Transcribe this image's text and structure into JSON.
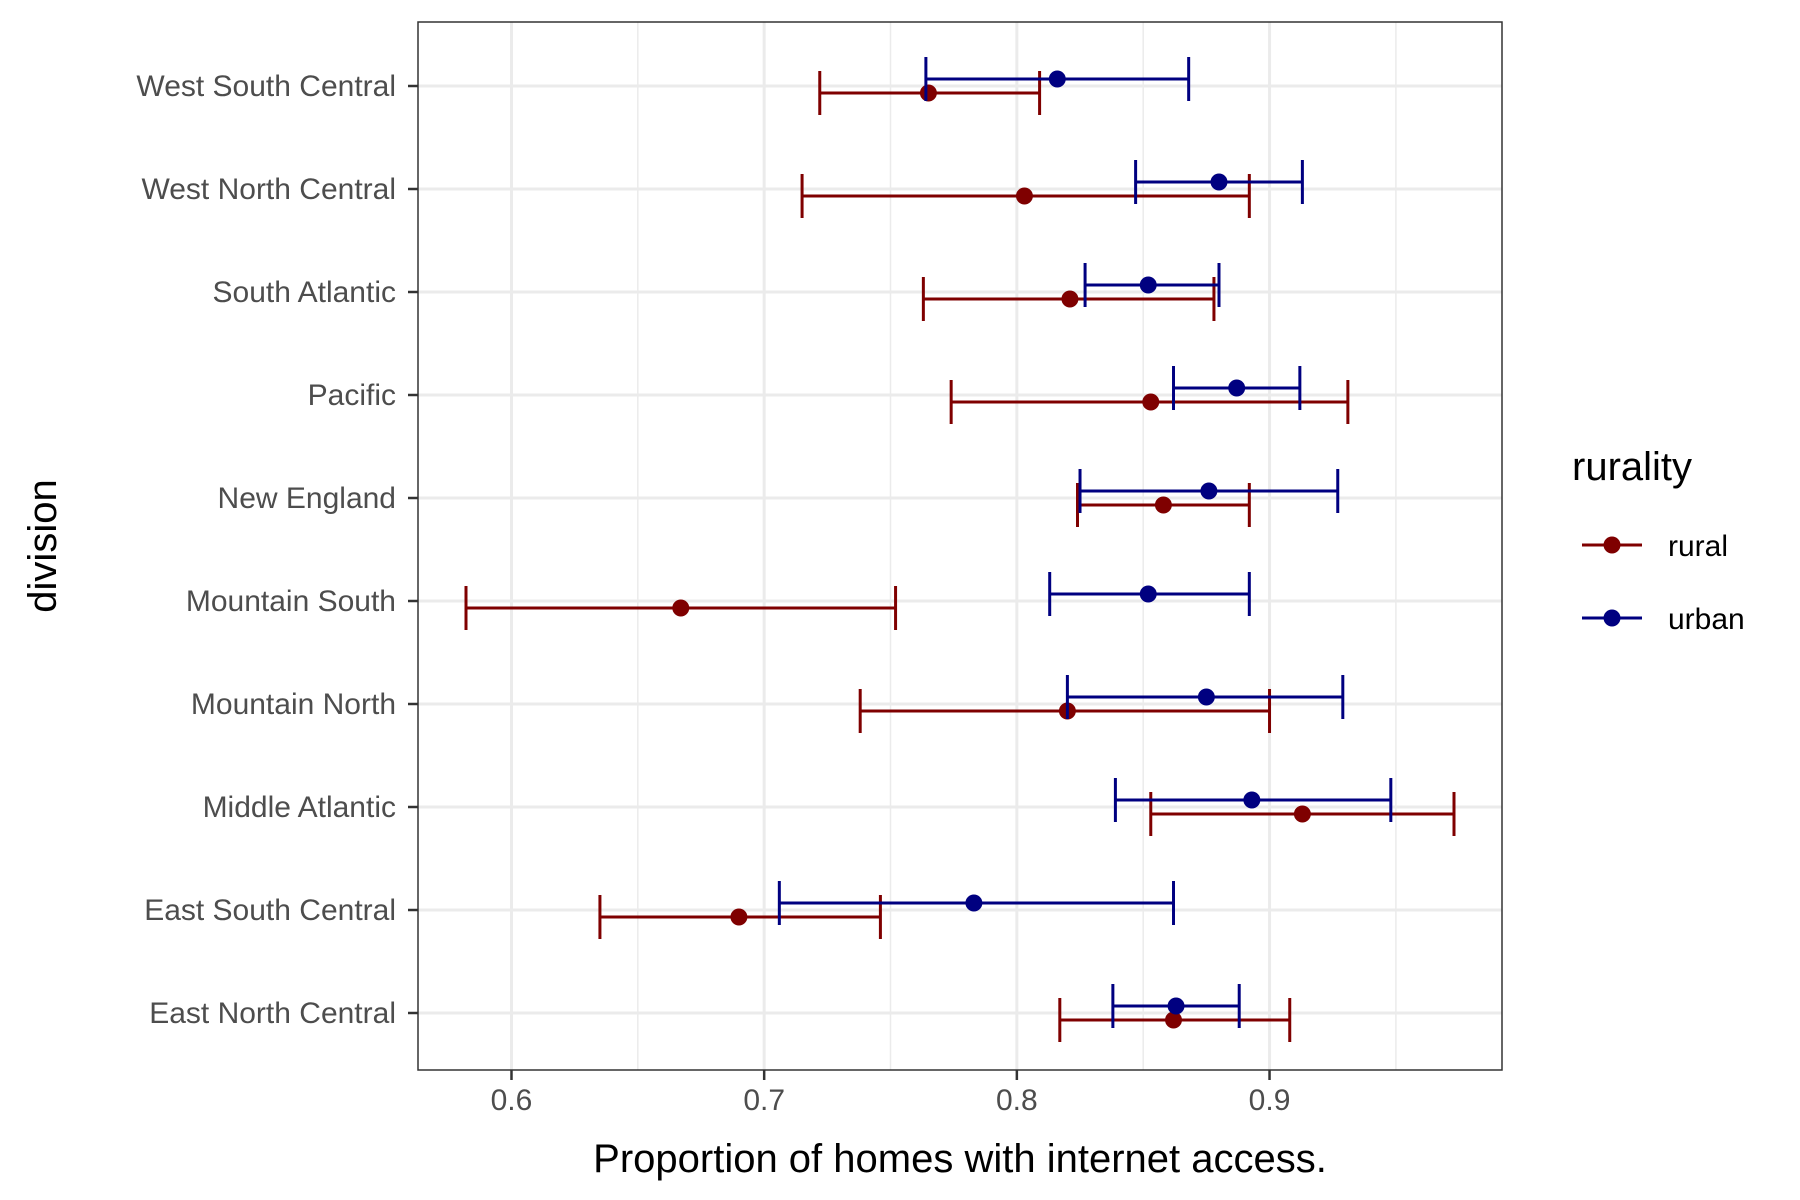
{
  "chart_data": {
    "type": "errorbar",
    "xlabel": "Proportion of homes with internet access.",
    "ylabel": "division",
    "xlim": [
      0.563,
      0.992
    ],
    "xticks": [
      0.6,
      0.7,
      0.8,
      0.9
    ],
    "xtick_labels": [
      "0.6",
      "0.7",
      "0.8",
      "0.9"
    ],
    "grid": true,
    "legend": {
      "title": "rurality",
      "placement": "right",
      "entries": [
        "rural",
        "urban"
      ]
    },
    "categories": [
      "East North Central",
      "East South Central",
      "Middle Atlantic",
      "Mountain North",
      "Mountain South",
      "New England",
      "Pacific",
      "South Atlantic",
      "West North Central",
      "West South Central"
    ],
    "series": [
      {
        "name": "rural",
        "color": "#7f0000",
        "estimate": [
          0.862,
          0.69,
          0.913,
          0.82,
          0.667,
          0.858,
          0.853,
          0.821,
          0.803,
          0.765
        ],
        "low": [
          0.817,
          0.635,
          0.853,
          0.738,
          0.582,
          0.824,
          0.774,
          0.763,
          0.715,
          0.722
        ],
        "high": [
          0.908,
          0.746,
          0.973,
          0.9,
          0.752,
          0.892,
          0.931,
          0.878,
          0.892,
          0.809
        ]
      },
      {
        "name": "urban",
        "color": "#000080",
        "estimate": [
          0.863,
          0.783,
          0.893,
          0.875,
          0.852,
          0.876,
          0.887,
          0.852,
          0.88,
          0.816
        ],
        "low": [
          0.838,
          0.706,
          0.839,
          0.82,
          0.813,
          0.825,
          0.862,
          0.827,
          0.847,
          0.764
        ],
        "high": [
          0.888,
          0.862,
          0.948,
          0.929,
          0.892,
          0.927,
          0.912,
          0.88,
          0.913,
          0.868
        ]
      }
    ]
  }
}
